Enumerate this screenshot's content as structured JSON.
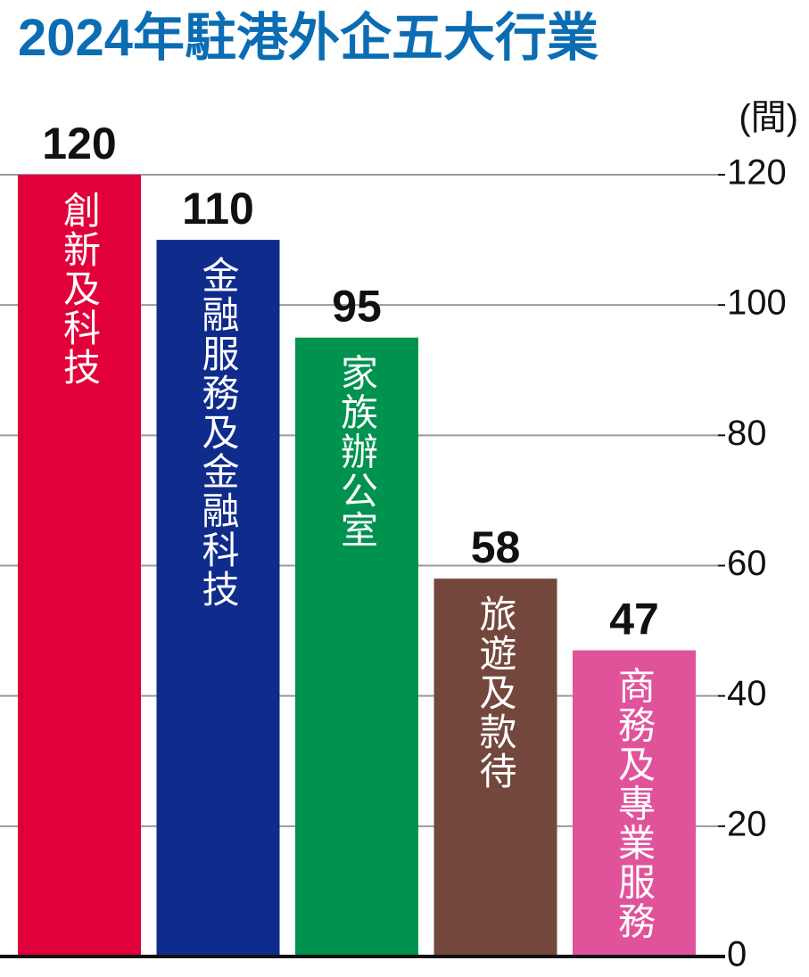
{
  "chart_data": {
    "type": "bar",
    "title": "2024年駐港外企五大行業",
    "y_label": "(間)",
    "categories": [
      "創新及科技",
      "金融服務及金融科技",
      "家族辦公室",
      "旅遊及款待",
      "商務及專業服務"
    ],
    "values": [
      120,
      110,
      95,
      58,
      47
    ],
    "colors": [
      "#e2003a",
      "#0f2c8c",
      "#00924f",
      "#74473d",
      "#e0539a"
    ],
    "ylim": [
      0,
      120
    ],
    "yticks": [
      0,
      20,
      40,
      60,
      80,
      100,
      120
    ],
    "grid": true
  }
}
